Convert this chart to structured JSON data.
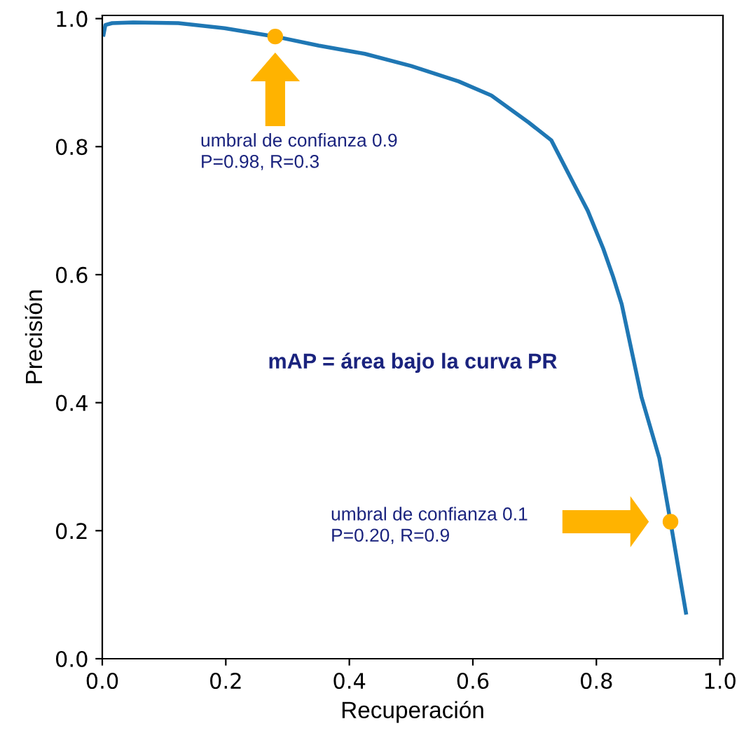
{
  "chart_data": {
    "type": "line",
    "xlabel": "Recuperación",
    "ylabel": "Precisión",
    "xlim": [
      0,
      1.005
    ],
    "ylim": [
      0,
      1.005
    ],
    "xticks": [
      {
        "value": 0,
        "label": "0.0"
      },
      0.2,
      0.4,
      0.6,
      0.8,
      {
        "value": 1.0,
        "label": "1.0"
      }
    ],
    "yticks": [
      {
        "value": 0,
        "label": "0.0"
      },
      0.2,
      0.4,
      0.6,
      0.8,
      {
        "value": 1.0,
        "label": "1.0"
      }
    ],
    "grid": false,
    "legend": false,
    "series": [
      {
        "color": "#1f77b4",
        "x": [
          0.002,
          0.005,
          0.016,
          0.05,
          0.123,
          0.198,
          0.28,
          0.35,
          0.425,
          0.5,
          0.577,
          0.63,
          0.69,
          0.727,
          0.766,
          0.786,
          0.811,
          0.827,
          0.841,
          0.873,
          0.902,
          0.92,
          0.945
        ],
        "values": [
          0.975,
          0.99,
          0.993,
          0.994,
          0.993,
          0.985,
          0.972,
          0.958,
          0.945,
          0.926,
          0.902,
          0.88,
          0.838,
          0.81,
          0.737,
          0.7,
          0.641,
          0.597,
          0.554,
          0.409,
          0.313,
          0.214,
          0.072
        ]
      },
      {
        "type": "scatter",
        "color": "#ffb000",
        "marker": "circle",
        "x": [
          0.28,
          0.92
        ],
        "values": [
          0.972,
          0.214
        ]
      }
    ],
    "annotations": [
      "umbral de confianza 0.9\nP=0.98, R=0.3",
      "umbral de confianza 0.1\nP=0.20, R=0.9",
      "mAP = área bajo la curva PR"
    ]
  }
}
